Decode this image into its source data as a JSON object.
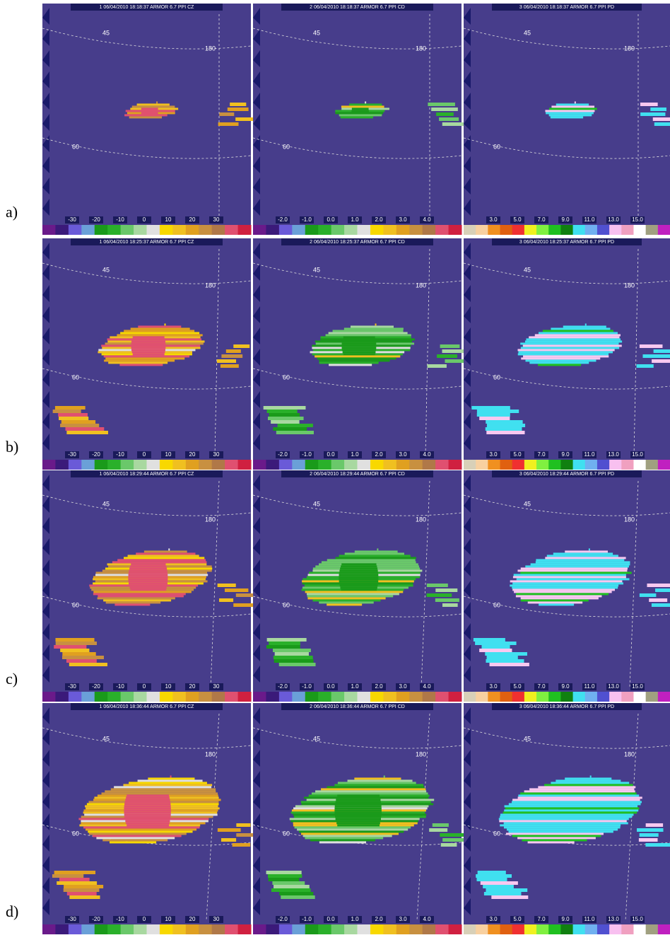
{
  "figure": {
    "rows": [
      {
        "label": "a)",
        "titles": [
          "1 06/04/2010 18:18:37 ARMOR 6.7 PPI CZ",
          "2 06/04/2010 18:18:37 ARMOR 6.7 PPI CD",
          "3 06/04/2010 18:18:37 ARMOR 6.7 PPI PD"
        ]
      },
      {
        "label": "b)",
        "titles": [
          "1 06/04/2010 18:25:37 ARMOR 6.7 PPI CZ",
          "2 06/04/2010 18:25:37 ARMOR 6.7 PPI CD",
          "3 06/04/2010 18:25:37 ARMOR 6.7 PPI PD"
        ]
      },
      {
        "label": "c)",
        "titles": [
          "1 06/04/2010 18:29:44 ARMOR 6.7 PPI CZ",
          "2 06/04/2010 18:29:44 ARMOR 6.7 PPI CD",
          "3 06/04/2010 18:29:44 ARMOR 6.7 PPI PD"
        ]
      },
      {
        "label": "d)",
        "titles": [
          "1 06/04/2010 18:36:44 ARMOR 6.7 PPI CZ",
          "2 06/04/2010 18:36:44 ARMOR 6.7 PPI CD",
          "3 06/04/2010 18:36:44 ARMOR 6.7 PPI PD"
        ]
      }
    ],
    "colorbars": [
      {
        "labels": [
          "-30",
          "-20",
          "-10",
          "0",
          "10",
          "20",
          "30"
        ]
      },
      {
        "labels": [
          "-2.0",
          "-1.0",
          "0.0",
          "1.0",
          "2.0",
          "3.0",
          "4.0"
        ]
      },
      {
        "labels": [
          "3.0",
          "5.0",
          "7.0",
          "9.0",
          "11.0",
          "13.0",
          "15.0"
        ]
      }
    ],
    "range_labels": [
      "45",
      "60",
      "180"
    ]
  }
}
